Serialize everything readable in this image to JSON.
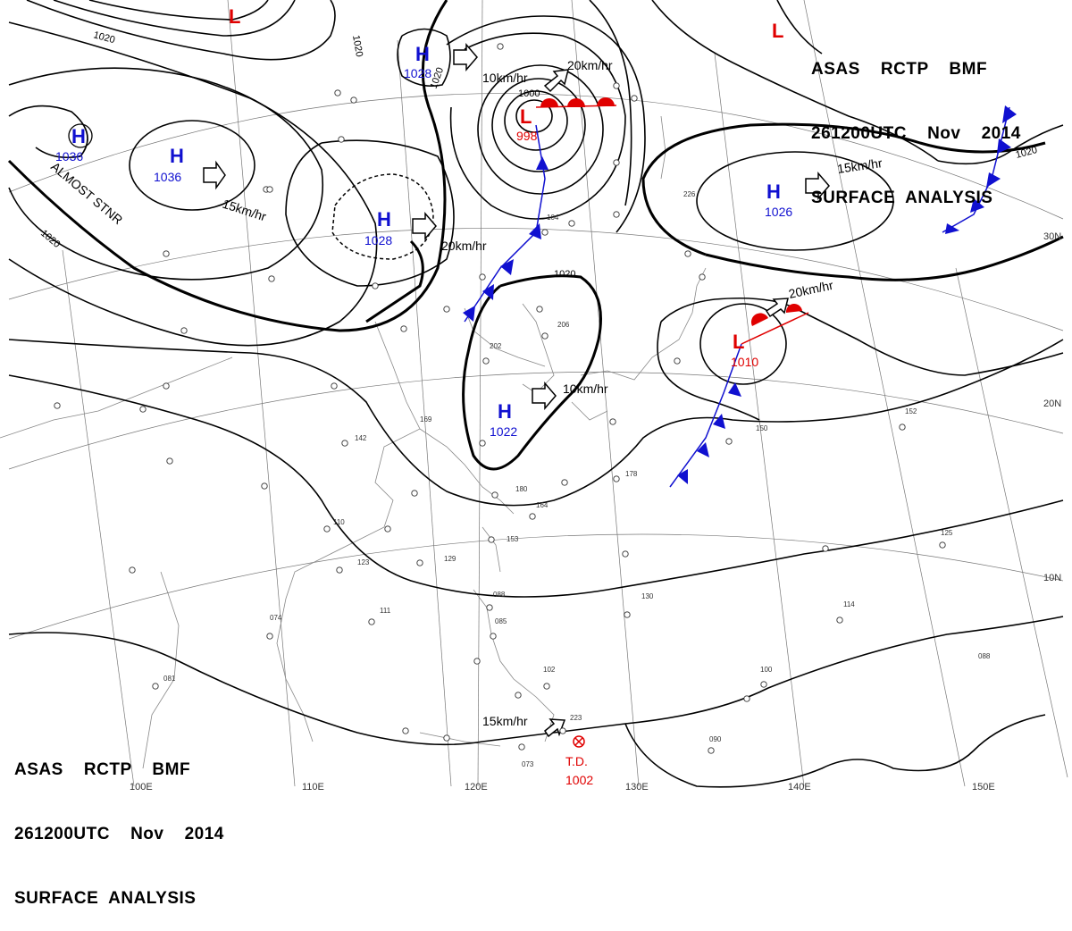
{
  "header": {
    "line1": "ASAS    RCTP    BMF",
    "line2": "261200UTC    Nov    2014",
    "line3": "SURFACE  ANALYSIS"
  },
  "pressure_centers": [
    {
      "type": "H",
      "value": "1036"
    },
    {
      "type": "H",
      "value": "1036"
    },
    {
      "type": "H",
      "value": "1028"
    },
    {
      "type": "H",
      "value": "1028"
    },
    {
      "type": "H",
      "value": "1026"
    },
    {
      "type": "H",
      "value": "1022"
    },
    {
      "type": "L",
      "value": "998"
    },
    {
      "type": "L",
      "value": "1010"
    },
    {
      "type": "L",
      "value": ""
    },
    {
      "type": "L",
      "value": ""
    }
  ],
  "motions": [
    "15km/hr",
    "20km/hr",
    "10km/hr",
    "20km/hr",
    "15km/hr",
    "20km/hr",
    "10km/hr",
    "15km/hr"
  ],
  "notes": {
    "almost_stnr": "ALMOST STNR",
    "td_label": "T.D.",
    "td_value": "1002"
  },
  "isobar_labels": [
    "1020",
    "1020",
    "1020",
    "1020",
    "1020",
    "1000",
    "1020"
  ],
  "longitudes": [
    "100E",
    "110E",
    "120E",
    "130E",
    "140E",
    "150E"
  ],
  "latitudes": [
    "30N",
    "20N",
    "10N"
  ],
  "station_labels": [
    "178",
    "153",
    "180",
    "164",
    "226",
    "104",
    "202",
    "206",
    "169",
    "142",
    "110",
    "123",
    "129",
    "111",
    "074",
    "081",
    "088",
    "085",
    "102",
    "130",
    "150",
    "152",
    "125",
    "114",
    "100",
    "090",
    "073",
    "223",
    "088"
  ],
  "colors": {
    "high": "#1010d0",
    "low": "#e00000",
    "cold_front": "#1010d0",
    "warm_front": "#e00000"
  }
}
